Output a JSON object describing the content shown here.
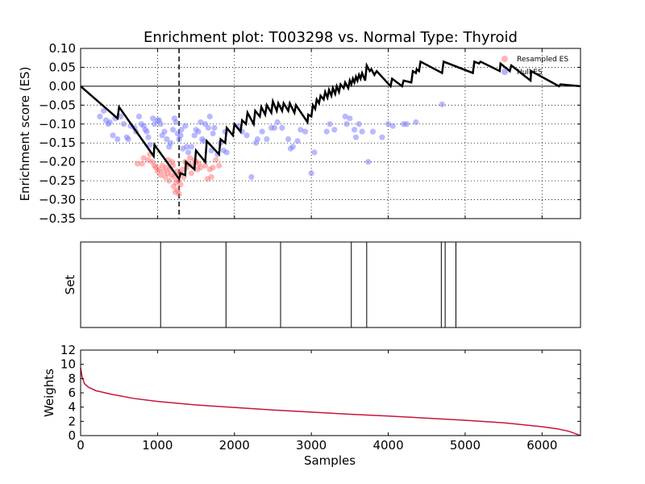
{
  "chart_data": [
    {
      "type": "line",
      "panel": "enrichment",
      "title": "Enrichment plot: T003298 vs. Normal Type: Thyroid",
      "xlabel": "",
      "ylabel": "Enrichment score (ES)",
      "xlim": [
        0,
        6500
      ],
      "ylim": [
        -0.35,
        0.1
      ],
      "yticks": [
        0.1,
        0.05,
        0.0,
        -0.05,
        -0.1,
        -0.15,
        -0.2,
        -0.25,
        -0.3,
        -0.35
      ],
      "ytick_labels": [
        "0.10",
        "0.05",
        "0.00",
        "−0.05",
        "−0.10",
        "−0.15",
        "−0.20",
        "−0.25",
        "−0.30",
        "−0.35"
      ],
      "xgrid": [
        1000,
        2000,
        3000,
        4000,
        5000,
        6000
      ],
      "ygrid": [
        0.05,
        -0.05,
        -0.1,
        -0.15,
        -0.2,
        -0.25,
        -0.3
      ],
      "vline_dashed_x": 1280,
      "legend": {
        "placement": "top-right",
        "entries": [
          {
            "name": "Resampled ES",
            "color": "#ff8080"
          },
          {
            "name": "Null ES",
            "color": "#8080ff"
          }
        ]
      },
      "es_curve": {
        "color": "#000000",
        "x": [
          0,
          480,
          500,
          950,
          960,
          1280,
          1300,
          1360,
          1370,
          1480,
          1500,
          1620,
          1640,
          1800,
          1820,
          1880,
          1900,
          1980,
          2000,
          2080,
          2100,
          2150,
          2170,
          2250,
          2270,
          2330,
          2350,
          2400,
          2420,
          2480,
          2500,
          2550,
          2570,
          2620,
          2640,
          2700,
          2720,
          2780,
          2800,
          2950,
          2960,
          3000,
          3020,
          3050,
          3070,
          3100,
          3120,
          3160,
          3180,
          3210,
          3230,
          3260,
          3280,
          3310,
          3330,
          3360,
          3380,
          3420,
          3440,
          3480,
          3500,
          3520,
          3540,
          3560,
          3580,
          3600,
          3620,
          3640,
          3660,
          3700,
          3720,
          3760,
          3780,
          3820,
          3850,
          4030,
          4050,
          4180,
          4200,
          4300,
          4320,
          4360,
          4370,
          4400,
          4420,
          4700,
          4720,
          5100,
          5120,
          5180,
          5200,
          5450,
          5460,
          5580,
          5600,
          5850,
          5860,
          6220,
          6240,
          6500
        ],
        "y": [
          0.0,
          -0.085,
          -0.055,
          -0.185,
          -0.155,
          -0.245,
          -0.23,
          -0.235,
          -0.2,
          -0.22,
          -0.17,
          -0.2,
          -0.145,
          -0.18,
          -0.14,
          -0.15,
          -0.11,
          -0.13,
          -0.1,
          -0.12,
          -0.09,
          -0.1,
          -0.07,
          -0.1,
          -0.065,
          -0.08,
          -0.055,
          -0.075,
          -0.05,
          -0.07,
          -0.04,
          -0.065,
          -0.045,
          -0.065,
          -0.045,
          -0.065,
          -0.045,
          -0.07,
          -0.05,
          -0.095,
          -0.075,
          -0.08,
          -0.05,
          -0.06,
          -0.035,
          -0.045,
          -0.025,
          -0.035,
          -0.015,
          -0.03,
          -0.01,
          -0.025,
          -0.005,
          -0.02,
          0.0,
          -0.015,
          0.005,
          -0.005,
          0.01,
          -0.005,
          0.015,
          0.005,
          0.02,
          0.01,
          0.025,
          0.015,
          0.03,
          0.02,
          0.035,
          0.015,
          0.055,
          0.04,
          0.045,
          0.03,
          0.04,
          0.0,
          0.02,
          0.0,
          0.015,
          0.01,
          0.04,
          0.035,
          0.045,
          0.04,
          0.065,
          0.035,
          0.065,
          0.035,
          0.065,
          0.06,
          0.065,
          0.04,
          0.06,
          0.04,
          0.055,
          0.015,
          0.04,
          0.0,
          0.005,
          0.0
        ]
      },
      "resampled_es": {
        "color": "#ff6060",
        "points": [
          [
            740,
            -0.205
          ],
          [
            800,
            -0.205
          ],
          [
            820,
            -0.19
          ],
          [
            880,
            -0.195
          ],
          [
            900,
            -0.18
          ],
          [
            930,
            -0.2
          ],
          [
            960,
            -0.21
          ],
          [
            980,
            -0.215
          ],
          [
            1000,
            -0.225
          ],
          [
            1020,
            -0.22
          ],
          [
            1040,
            -0.235
          ],
          [
            1060,
            -0.21
          ],
          [
            1080,
            -0.225
          ],
          [
            1100,
            -0.24
          ],
          [
            1110,
            -0.215
          ],
          [
            1130,
            -0.23
          ],
          [
            1140,
            -0.195
          ],
          [
            1150,
            -0.25
          ],
          [
            1160,
            -0.22
          ],
          [
            1180,
            -0.235
          ],
          [
            1190,
            -0.2
          ],
          [
            1200,
            -0.21
          ],
          [
            1210,
            -0.265
          ],
          [
            1220,
            -0.24
          ],
          [
            1230,
            -0.28
          ],
          [
            1240,
            -0.255
          ],
          [
            1250,
            -0.225
          ],
          [
            1260,
            -0.275
          ],
          [
            1270,
            -0.25
          ],
          [
            1280,
            -0.285
          ],
          [
            1290,
            -0.23
          ],
          [
            1300,
            -0.26
          ],
          [
            1320,
            -0.22
          ],
          [
            1340,
            -0.24
          ],
          [
            1360,
            -0.2
          ],
          [
            1380,
            -0.215
          ],
          [
            1400,
            -0.205
          ],
          [
            1420,
            -0.19
          ],
          [
            1440,
            -0.23
          ],
          [
            1460,
            -0.21
          ],
          [
            1480,
            -0.195
          ],
          [
            1500,
            -0.2
          ],
          [
            1520,
            -0.22
          ],
          [
            1540,
            -0.205
          ],
          [
            1560,
            -0.215
          ],
          [
            1620,
            -0.21
          ],
          [
            1650,
            -0.245
          ],
          [
            1680,
            -0.22
          ],
          [
            1700,
            -0.24
          ],
          [
            1720,
            -0.215
          ],
          [
            1760,
            -0.195
          ],
          [
            1800,
            -0.21
          ]
        ]
      },
      "null_es": {
        "color": "#8080ff",
        "points": [
          [
            250,
            -0.08
          ],
          [
            300,
            -0.065
          ],
          [
            330,
            -0.09
          ],
          [
            360,
            -0.1
          ],
          [
            380,
            -0.095
          ],
          [
            420,
            -0.13
          ],
          [
            450,
            -0.085
          ],
          [
            480,
            -0.14
          ],
          [
            520,
            -0.08
          ],
          [
            560,
            -0.1
          ],
          [
            600,
            -0.135
          ],
          [
            620,
            -0.14
          ],
          [
            650,
            -0.105
          ],
          [
            700,
            -0.11
          ],
          [
            720,
            -0.12
          ],
          [
            760,
            -0.08
          ],
          [
            790,
            -0.1
          ],
          [
            820,
            -0.105
          ],
          [
            840,
            -0.115
          ],
          [
            860,
            -0.12
          ],
          [
            880,
            -0.135
          ],
          [
            900,
            -0.155
          ],
          [
            940,
            -0.085
          ],
          [
            960,
            -0.1
          ],
          [
            1000,
            -0.09
          ],
          [
            1020,
            -0.09
          ],
          [
            1040,
            -0.1
          ],
          [
            1060,
            -0.13
          ],
          [
            1090,
            -0.12
          ],
          [
            1120,
            -0.14
          ],
          [
            1150,
            -0.16
          ],
          [
            1170,
            -0.15
          ],
          [
            1200,
            -0.115
          ],
          [
            1220,
            -0.085
          ],
          [
            1240,
            -0.095
          ],
          [
            1260,
            -0.125
          ],
          [
            1280,
            -0.14
          ],
          [
            1300,
            -0.13
          ],
          [
            1310,
            -0.115
          ],
          [
            1330,
            -0.165
          ],
          [
            1360,
            -0.105
          ],
          [
            1380,
            -0.16
          ],
          [
            1400,
            -0.175
          ],
          [
            1440,
            -0.16
          ],
          [
            1480,
            -0.13
          ],
          [
            1500,
            -0.115
          ],
          [
            1530,
            -0.12
          ],
          [
            1560,
            -0.095
          ],
          [
            1580,
            -0.14
          ],
          [
            1600,
            -0.145
          ],
          [
            1620,
            -0.1
          ],
          [
            1660,
            -0.11
          ],
          [
            1680,
            -0.08
          ],
          [
            1700,
            -0.17
          ],
          [
            1720,
            -0.125
          ],
          [
            1740,
            -0.11
          ],
          [
            1780,
            -0.18
          ],
          [
            1820,
            -0.15
          ],
          [
            1860,
            -0.17
          ],
          [
            1880,
            -0.12
          ],
          [
            1900,
            -0.175
          ],
          [
            2050,
            -0.105
          ],
          [
            2100,
            -0.12
          ],
          [
            2160,
            -0.13
          ],
          [
            2220,
            -0.24
          ],
          [
            2280,
            -0.15
          ],
          [
            2300,
            -0.14
          ],
          [
            2360,
            -0.12
          ],
          [
            2420,
            -0.14
          ],
          [
            2480,
            -0.11
          ],
          [
            2520,
            -0.11
          ],
          [
            2560,
            -0.095
          ],
          [
            2620,
            -0.11
          ],
          [
            2700,
            -0.14
          ],
          [
            2730,
            -0.165
          ],
          [
            2760,
            -0.16
          ],
          [
            2820,
            -0.145
          ],
          [
            2860,
            -0.115
          ],
          [
            2920,
            -0.12
          ],
          [
            3000,
            -0.23
          ],
          [
            3040,
            -0.175
          ],
          [
            3200,
            -0.12
          ],
          [
            3240,
            -0.1
          ],
          [
            3300,
            -0.115
          ],
          [
            3440,
            -0.08
          ],
          [
            3460,
            -0.1
          ],
          [
            3500,
            -0.085
          ],
          [
            3560,
            -0.115
          ],
          [
            3580,
            -0.135
          ],
          [
            3620,
            -0.1
          ],
          [
            3660,
            -0.12
          ],
          [
            3740,
            -0.2
          ],
          [
            3800,
            -0.12
          ],
          [
            3920,
            -0.135
          ],
          [
            4000,
            -0.1
          ],
          [
            4060,
            -0.105
          ],
          [
            4200,
            -0.1
          ],
          [
            4240,
            -0.1
          ],
          [
            4360,
            -0.095
          ],
          [
            4700,
            -0.048
          ]
        ]
      }
    },
    {
      "type": "barcode",
      "panel": "set",
      "ylabel": "Set",
      "xlim": [
        0,
        6500
      ],
      "hits": [
        1040,
        1890,
        2600,
        3520,
        3720,
        4690,
        4740,
        4880
      ]
    },
    {
      "type": "area",
      "panel": "weights",
      "xlabel": "Samples",
      "ylabel": "Weights",
      "xlim": [
        0,
        6500
      ],
      "ylim": [
        0,
        12
      ],
      "xticks": [
        0,
        1000,
        2000,
        3000,
        4000,
        5000,
        6000
      ],
      "xtick_labels": [
        "0",
        "1000",
        "2000",
        "3000",
        "4000",
        "5000",
        "6000"
      ],
      "yticks": [
        0,
        2,
        4,
        6,
        8,
        10,
        12
      ],
      "ytick_labels": [
        "0",
        "2",
        "4",
        "6",
        "8",
        "10",
        "12"
      ],
      "series": [
        {
          "color": "#c8143c",
          "x": [
            0,
            20,
            50,
            100,
            200,
            400,
            700,
            1000,
            1500,
            2000,
            2500,
            3000,
            3500,
            4000,
            4500,
            5000,
            5500,
            6000,
            6200,
            6350,
            6450,
            6500
          ],
          "values": [
            9.5,
            8.2,
            7.3,
            6.8,
            6.3,
            5.8,
            5.2,
            4.8,
            4.3,
            3.95,
            3.6,
            3.3,
            3.0,
            2.75,
            2.45,
            2.15,
            1.8,
            1.25,
            0.95,
            0.6,
            0.2,
            0.0
          ]
        }
      ]
    }
  ]
}
